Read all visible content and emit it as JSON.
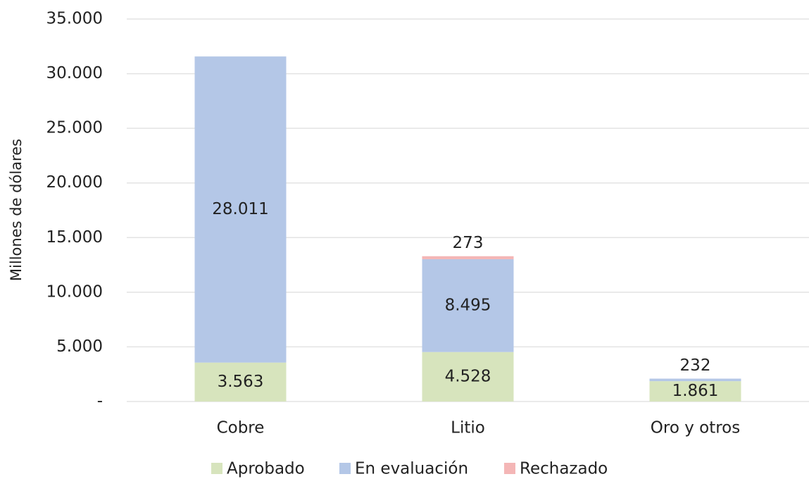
{
  "chart_data": {
    "type": "stacked_bar",
    "y_label": "Millones de dólares",
    "categories": [
      "Cobre",
      "Litio",
      "Oro y otros"
    ],
    "series": [
      {
        "name": "Aprobado",
        "color": "#d7e4bd",
        "values": [
          3563,
          4528,
          1861
        ],
        "value_labels": [
          "3.563",
          "4.528",
          "1.861"
        ]
      },
      {
        "name": "En evaluación",
        "color": "#b4c7e7",
        "values": [
          28011,
          8495,
          232
        ],
        "value_labels": [
          "28.011",
          "8.495",
          "232"
        ]
      },
      {
        "name": "Rechazado",
        "color": "#f4b6b6",
        "values": [
          null,
          273,
          null
        ],
        "value_labels": [
          null,
          "273",
          null
        ]
      }
    ],
    "ylim": [
      0,
      35000
    ],
    "yticks": [
      {
        "value": 0,
        "label": "-"
      },
      {
        "value": 5000,
        "label": "5.000"
      },
      {
        "value": 10000,
        "label": "10.000"
      },
      {
        "value": 15000,
        "label": "15.000"
      },
      {
        "value": 20000,
        "label": "20.000"
      },
      {
        "value": 25000,
        "label": "25.000"
      },
      {
        "value": 30000,
        "label": "30.000"
      },
      {
        "value": 35000,
        "label": "35.000"
      }
    ],
    "grid": true,
    "legend": "bottom"
  }
}
